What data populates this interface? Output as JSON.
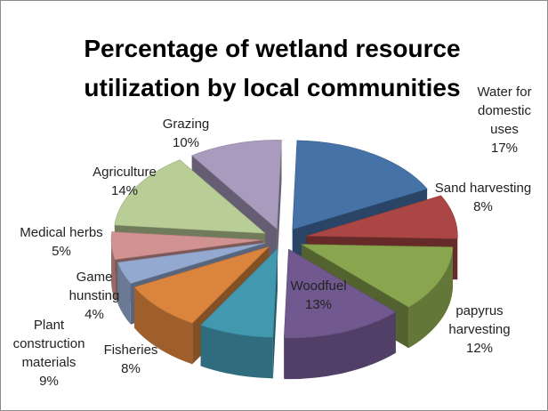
{
  "chart_data": {
    "type": "pie",
    "title": "Percentage of wetland resource\nutilization by local communities",
    "slices": [
      {
        "label": "Water for\ndomestic\nuses",
        "value": 17,
        "value_text": "17%",
        "color": "#4572a7"
      },
      {
        "label": "Sand harvesting",
        "value": 8,
        "value_text": "8%",
        "color": "#aa4643"
      },
      {
        "label": "papyrus\nharvesting",
        "value": 12,
        "value_text": "12%",
        "color": "#89a54e"
      },
      {
        "label": "Woodfuel",
        "value": 13,
        "value_text": "13%",
        "color": "#71588f"
      },
      {
        "label": "Fisheries",
        "value": 8,
        "value_text": "8%",
        "color": "#4198af"
      },
      {
        "label": "Plant\nconstruction\nmaterials",
        "value": 9,
        "value_text": "9%",
        "color": "#db843d"
      },
      {
        "label": "Game\nhunsting",
        "value": 4,
        "value_text": "4%",
        "color": "#93a9cf"
      },
      {
        "label": "Medical herbs",
        "value": 5,
        "value_text": "5%",
        "color": "#d19392"
      },
      {
        "label": "Agriculture",
        "value": 14,
        "value_text": "14%",
        "color": "#b9cd96"
      },
      {
        "label": "Grazing",
        "value": 10,
        "value_text": "10%",
        "color": "#a99bbd"
      }
    ],
    "style": "3d-exploded"
  }
}
